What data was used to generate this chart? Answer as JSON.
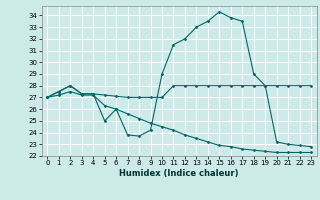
{
  "xlabel": "Humidex (Indice chaleur)",
  "ylabel": "",
  "xlim": [
    -0.5,
    23.5
  ],
  "ylim": [
    22,
    34.8
  ],
  "yticks": [
    22,
    23,
    24,
    25,
    26,
    27,
    28,
    29,
    30,
    31,
    32,
    33,
    34
  ],
  "xticks": [
    0,
    1,
    2,
    3,
    4,
    5,
    6,
    7,
    8,
    9,
    10,
    11,
    12,
    13,
    14,
    15,
    16,
    17,
    18,
    19,
    20,
    21,
    22,
    23
  ],
  "bg_color": "#cceae8",
  "grid_color": "#ffffff",
  "line_color": "#006666",
  "lines": [
    {
      "x": [
        0,
        1,
        2,
        3,
        4,
        5,
        6,
        7,
        8,
        9,
        10,
        11,
        12,
        13,
        14,
        15,
        16,
        17,
        18,
        19,
        20,
        21,
        22,
        23
      ],
      "y": [
        27.0,
        27.5,
        28.0,
        27.3,
        27.3,
        27.2,
        27.1,
        27.0,
        27.0,
        27.0,
        27.0,
        28.0,
        28.0,
        28.0,
        28.0,
        28.0,
        28.0,
        28.0,
        28.0,
        28.0,
        28.0,
        28.0,
        28.0,
        28.0
      ]
    },
    {
      "x": [
        0,
        1,
        2,
        3,
        4,
        5,
        6,
        7,
        8,
        9,
        10,
        11,
        12,
        13,
        14,
        15,
        16,
        17,
        18,
        19,
        20,
        21,
        22,
        23
      ],
      "y": [
        27.0,
        27.5,
        28.0,
        27.3,
        27.3,
        25.0,
        26.0,
        23.8,
        23.7,
        24.2,
        29.0,
        31.5,
        32.0,
        33.0,
        33.5,
        34.3,
        33.8,
        33.5,
        29.0,
        28.0,
        23.2,
        23.0,
        22.9,
        22.8
      ]
    },
    {
      "x": [
        0,
        1,
        2,
        3,
        4,
        5,
        6,
        7,
        8,
        9,
        10,
        11,
        12,
        13,
        14,
        15,
        16,
        17,
        18,
        19,
        20,
        21,
        22,
        23
      ],
      "y": [
        27.0,
        27.2,
        27.5,
        27.2,
        27.2,
        26.3,
        26.0,
        25.6,
        25.2,
        24.8,
        24.5,
        24.2,
        23.8,
        23.5,
        23.2,
        22.9,
        22.8,
        22.6,
        22.5,
        22.4,
        22.3,
        22.3,
        22.3,
        22.3
      ]
    }
  ]
}
